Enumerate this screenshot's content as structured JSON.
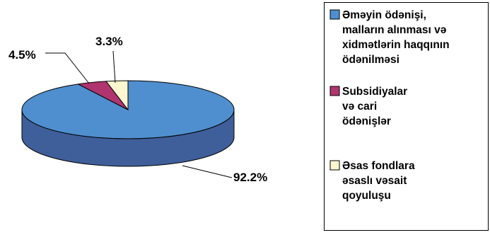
{
  "chart_data": {
    "type": "pie",
    "title": "",
    "slices": [
      {
        "label": "Əməyin ödənişi, malların alınması və xidmətlərin haqqının ödənilməsi",
        "legend_lines": [
          "Əməyin ödənişi,",
          "malların alınması və",
          "xidmətlərin haqqının",
          "ödənilməsi"
        ],
        "value": 92.2,
        "value_label": "92.2%",
        "color": "#4F8FCF",
        "side_color": "#3F5F9A"
      },
      {
        "label": "Subsidiyalar və cari ödənişlər",
        "legend_lines": [
          "Subsidiyalar",
          "və cari",
          "ödənişlər"
        ],
        "value": 4.5,
        "value_label": "4.5%",
        "color": "#B0356E",
        "side_color": "#7A2550"
      },
      {
        "label": "Əsas fondlara əsaslı vəsait qoyuluşu",
        "legend_lines": [
          "Əsas fondlara",
          "əsaslı vəsait",
          "qoyuluşu"
        ],
        "value": 3.3,
        "value_label": "3.3%",
        "color": "#FDF7CF",
        "side_color": "#D8D0A0"
      }
    ],
    "legend_position": "right",
    "style": "3d-pie"
  }
}
